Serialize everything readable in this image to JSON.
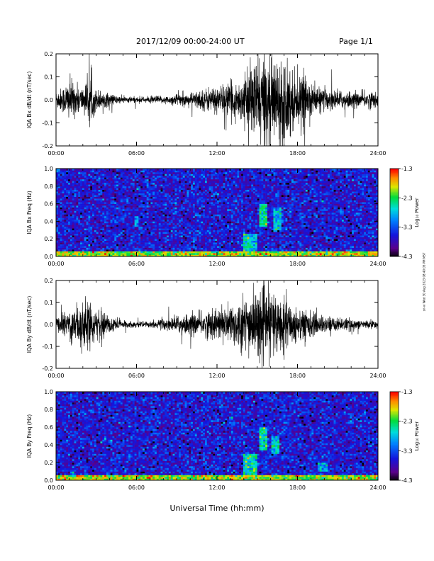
{
  "header": {
    "title": "2017/12/09  00:00-24:00 UT",
    "page": "Page 1/1"
  },
  "footer": {
    "xlabel": "Universal Time (hh:mm)"
  },
  "side_stamp": "sri-vi Wed 30 Aug 2023 08:40:05 PM MST",
  "colorbar": {
    "label": "Log₁₀ Power",
    "ticks": [
      -1.3,
      -2.3,
      -3.3,
      -4.3
    ],
    "tick_labels": [
      "-1.3",
      "-2.3",
      "-3.3",
      "-4.3"
    ],
    "range": [
      -4.3,
      -1.3
    ],
    "colormap": "rainbow (black-purple-blue-cyan-green-yellow-orange-red)"
  },
  "chart_data": [
    {
      "type": "line",
      "ylabel": "IQA Bx dB/dt (nT/sec)",
      "xlim": [
        0,
        24
      ],
      "ylim": [
        -0.2,
        0.2
      ],
      "x_ticks": [
        "00:00",
        "06:00",
        "12:00",
        "18:00",
        "24:00"
      ],
      "y_ticks": [
        "0.2",
        "0.1",
        "0.0",
        "-0.1",
        "-0.2"
      ],
      "series_color": "#000000",
      "envelope": {
        "x_hours": [
          0,
          0.5,
          1,
          1.5,
          2,
          2.5,
          3,
          3.5,
          4,
          4.5,
          5,
          5.5,
          6,
          6.5,
          7,
          7.5,
          8,
          8.5,
          9,
          9.5,
          10,
          10.5,
          11,
          11.5,
          12,
          12.5,
          13,
          13.5,
          14,
          14.5,
          15,
          15.5,
          16,
          16.5,
          17,
          17.5,
          18,
          18.5,
          19,
          19.5,
          20,
          20.5,
          21,
          21.5,
          22,
          22.5,
          23,
          23.5,
          24
        ],
        "amplitude": [
          0.04,
          0.06,
          0.1,
          0.07,
          0.06,
          0.1,
          0.05,
          0.04,
          0.03,
          0.02,
          0.015,
          0.015,
          0.015,
          0.012,
          0.015,
          0.02,
          0.015,
          0.02,
          0.03,
          0.025,
          0.03,
          0.04,
          0.05,
          0.06,
          0.06,
          0.07,
          0.08,
          0.08,
          0.1,
          0.16,
          0.2,
          0.2,
          0.2,
          0.18,
          0.2,
          0.16,
          0.1,
          0.12,
          0.08,
          0.06,
          0.05,
          0.05,
          0.04,
          0.04,
          0.04,
          0.03,
          0.04,
          0.04,
          0.03
        ]
      }
    },
    {
      "type": "heatmap",
      "ylabel": "IQA Bx Freq (Hz)",
      "xlim": [
        0,
        24
      ],
      "ylim": [
        0,
        1.0
      ],
      "x_ticks": [
        "00:00",
        "06:00",
        "12:00",
        "18:00",
        "24:00"
      ],
      "y_ticks": [
        "1.0",
        "0.8",
        "0.6",
        "0.4",
        "0.2",
        "0.0"
      ],
      "zlim": [
        -4.3,
        -1.3
      ],
      "background_level": -3.6,
      "features": [
        {
          "t0": 0,
          "t1": 24,
          "f0": 0.0,
          "f1": 0.05,
          "level": -2.0
        },
        {
          "t0": 14.0,
          "t1": 15.0,
          "f0": 0.0,
          "f1": 0.25,
          "level": -2.6
        },
        {
          "t0": 15.2,
          "t1": 15.8,
          "f0": 0.35,
          "f1": 0.6,
          "level": -2.5
        },
        {
          "t0": 16.2,
          "t1": 16.8,
          "f0": 0.3,
          "f1": 0.55,
          "level": -2.7
        },
        {
          "t0": 5.8,
          "t1": 6.2,
          "f0": 0.35,
          "f1": 0.45,
          "level": -2.9
        }
      ]
    },
    {
      "type": "line",
      "ylabel": "IQA By dB/dt (nT/sec)",
      "xlim": [
        0,
        24
      ],
      "ylim": [
        -0.2,
        0.2
      ],
      "x_ticks": [
        "00:00",
        "06:00",
        "12:00",
        "18:00",
        "24:00"
      ],
      "y_ticks": [
        "0.2",
        "0.1",
        "0.0",
        "-0.1",
        "-0.2"
      ],
      "series_color": "#000000",
      "envelope": {
        "x_hours": [
          0,
          0.5,
          1,
          1.5,
          2,
          2.5,
          3,
          3.5,
          4,
          4.5,
          5,
          5.5,
          6,
          6.5,
          7,
          7.5,
          8,
          8.5,
          9,
          9.5,
          10,
          10.5,
          11,
          11.5,
          12,
          12.5,
          13,
          13.5,
          14,
          14.5,
          15,
          15.5,
          16,
          16.5,
          17,
          17.5,
          18,
          18.5,
          19,
          19.5,
          20,
          20.5,
          21,
          21.5,
          22,
          22.5,
          23,
          23.5,
          24
        ],
        "amplitude": [
          0.03,
          0.05,
          0.08,
          0.1,
          0.12,
          0.12,
          0.06,
          0.06,
          0.05,
          0.03,
          0.02,
          0.015,
          0.015,
          0.012,
          0.015,
          0.02,
          0.03,
          0.03,
          0.04,
          0.05,
          0.05,
          0.05,
          0.06,
          0.07,
          0.08,
          0.08,
          0.1,
          0.12,
          0.12,
          0.15,
          0.16,
          0.16,
          0.16,
          0.14,
          0.12,
          0.1,
          0.08,
          0.08,
          0.06,
          0.05,
          0.04,
          0.04,
          0.03,
          0.03,
          0.03,
          0.02,
          0.02,
          0.02,
          0.02
        ]
      }
    },
    {
      "type": "heatmap",
      "ylabel": "IQA By Freq (Hz)",
      "xlim": [
        0,
        24
      ],
      "ylim": [
        0,
        1.0
      ],
      "x_ticks": [
        "00:00",
        "06:00",
        "12:00",
        "18:00",
        "24:00"
      ],
      "y_ticks": [
        "1.0",
        "0.8",
        "0.6",
        "0.4",
        "0.2",
        "0.0"
      ],
      "zlim": [
        -4.3,
        -1.3
      ],
      "background_level": -3.6,
      "features": [
        {
          "t0": 0,
          "t1": 24,
          "f0": 0.0,
          "f1": 0.05,
          "level": -2.0
        },
        {
          "t0": 14.0,
          "t1": 15.0,
          "f0": 0.0,
          "f1": 0.3,
          "level": -2.6
        },
        {
          "t0": 15.2,
          "t1": 15.8,
          "f0": 0.35,
          "f1": 0.6,
          "level": -2.5
        },
        {
          "t0": 16.0,
          "t1": 16.6,
          "f0": 0.3,
          "f1": 0.5,
          "level": -2.7
        },
        {
          "t0": 19.5,
          "t1": 20.2,
          "f0": 0.1,
          "f1": 0.2,
          "level": -2.8
        }
      ]
    }
  ]
}
